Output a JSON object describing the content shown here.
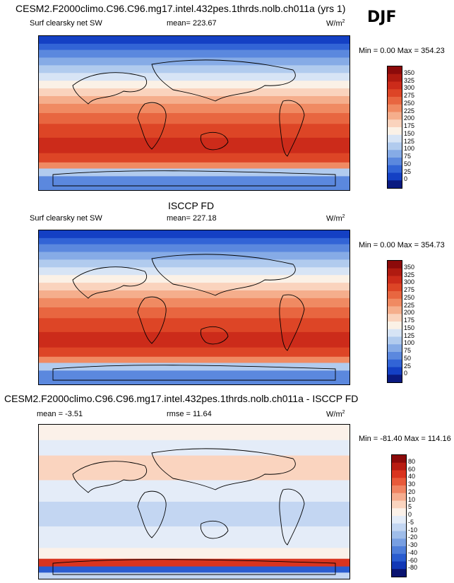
{
  "season": "DJF",
  "panels": [
    {
      "title": "CESM2.F2000climo.C96.C96.mg17.intel.432pes.1thrds.nolb.ch011a (yrs 1)",
      "variable": "Surf clearsky net SW",
      "stat_label": "mean=",
      "stat_value": "223.67",
      "units": "W/m",
      "units_sup": "2",
      "min_label": "Min =",
      "min_value": "0.00",
      "max_label": "Max =",
      "max_value": "354.23",
      "kind": "abs"
    },
    {
      "title": "ISCCP FD",
      "variable": "Surf clearsky net SW",
      "stat_label": "mean=",
      "stat_value": "227.18",
      "units": "W/m",
      "units_sup": "2",
      "min_label": "Min =",
      "min_value": "0.00",
      "max_label": "Max =",
      "max_value": "354.73",
      "kind": "abs"
    },
    {
      "title": "CESM2.F2000climo.C96.C96.mg17.intel.432pes.1thrds.nolb.ch011a - ISCCP FD",
      "mean_label": "mean =",
      "mean_value": "-3.51",
      "rmse_label": "rmse =",
      "rmse_value": "11.64",
      "units": "W/m",
      "units_sup": "2",
      "min_label": "Min =",
      "min_value": "-81.40",
      "max_label": "Max =",
      "max_value": "114.16",
      "kind": "diff"
    }
  ],
  "chart_data": [
    {
      "type": "heatmap",
      "title": "CESM2.F2000climo.C96.C96.mg17.intel.432pes.1thrds.nolb.ch011a (yrs 1)",
      "variable": "Surf clearsky net SW",
      "units": "W/m2",
      "mean": 223.67,
      "min": 0.0,
      "max": 354.23,
      "colorbar_levels": [
        "350",
        "325",
        "300",
        "275",
        "250",
        "225",
        "200",
        "175",
        "150",
        "125",
        "100",
        "75",
        "50",
        "25",
        "0"
      ],
      "colorbar_colors": [
        "#8c0a0a",
        "#b01a10",
        "#cc2b1a",
        "#dd4526",
        "#e86640",
        "#f08a62",
        "#f5ae8c",
        "#fad3bd",
        "#fbf1e6",
        "#d7e4f5",
        "#b1cbee",
        "#86abe6",
        "#5b88de",
        "#3264d6",
        "#1440c4",
        "#0a1a80"
      ]
    },
    {
      "type": "heatmap",
      "title": "ISCCP FD",
      "variable": "Surf clearsky net SW",
      "units": "W/m2",
      "mean": 227.18,
      "min": 0.0,
      "max": 354.73,
      "colorbar_levels": [
        "350",
        "325",
        "300",
        "275",
        "250",
        "225",
        "200",
        "175",
        "150",
        "125",
        "100",
        "75",
        "50",
        "25",
        "0"
      ],
      "colorbar_colors": [
        "#8c0a0a",
        "#b01a10",
        "#cc2b1a",
        "#dd4526",
        "#e86640",
        "#f08a62",
        "#f5ae8c",
        "#fad3bd",
        "#fbf1e6",
        "#d7e4f5",
        "#b1cbee",
        "#86abe6",
        "#5b88de",
        "#3264d6",
        "#1440c4",
        "#0a1a80"
      ]
    },
    {
      "type": "heatmap",
      "title": "CESM2.F2000climo.C96.C96.mg17.intel.432pes.1thrds.nolb.ch011a - ISCCP FD",
      "units": "W/m2",
      "mean": -3.51,
      "rmse": 11.64,
      "min": -81.4,
      "max": 114.16,
      "colorbar_levels": [
        "80",
        "60",
        "40",
        "30",
        "20",
        "10",
        "5",
        "0",
        "-5",
        "-10",
        "-20",
        "-30",
        "-40",
        "-60",
        "-80"
      ],
      "colorbar_colors": [
        "#8c0a0a",
        "#b81c12",
        "#d9341f",
        "#e85a3a",
        "#f08462",
        "#f6ad8f",
        "#fad4bf",
        "#fbf1e9",
        "#e4ecf8",
        "#c3d6f2",
        "#9fbdea",
        "#789fe2",
        "#4f7ed9",
        "#2a5ccf",
        "#1238b6",
        "#0a1470"
      ]
    }
  ]
}
